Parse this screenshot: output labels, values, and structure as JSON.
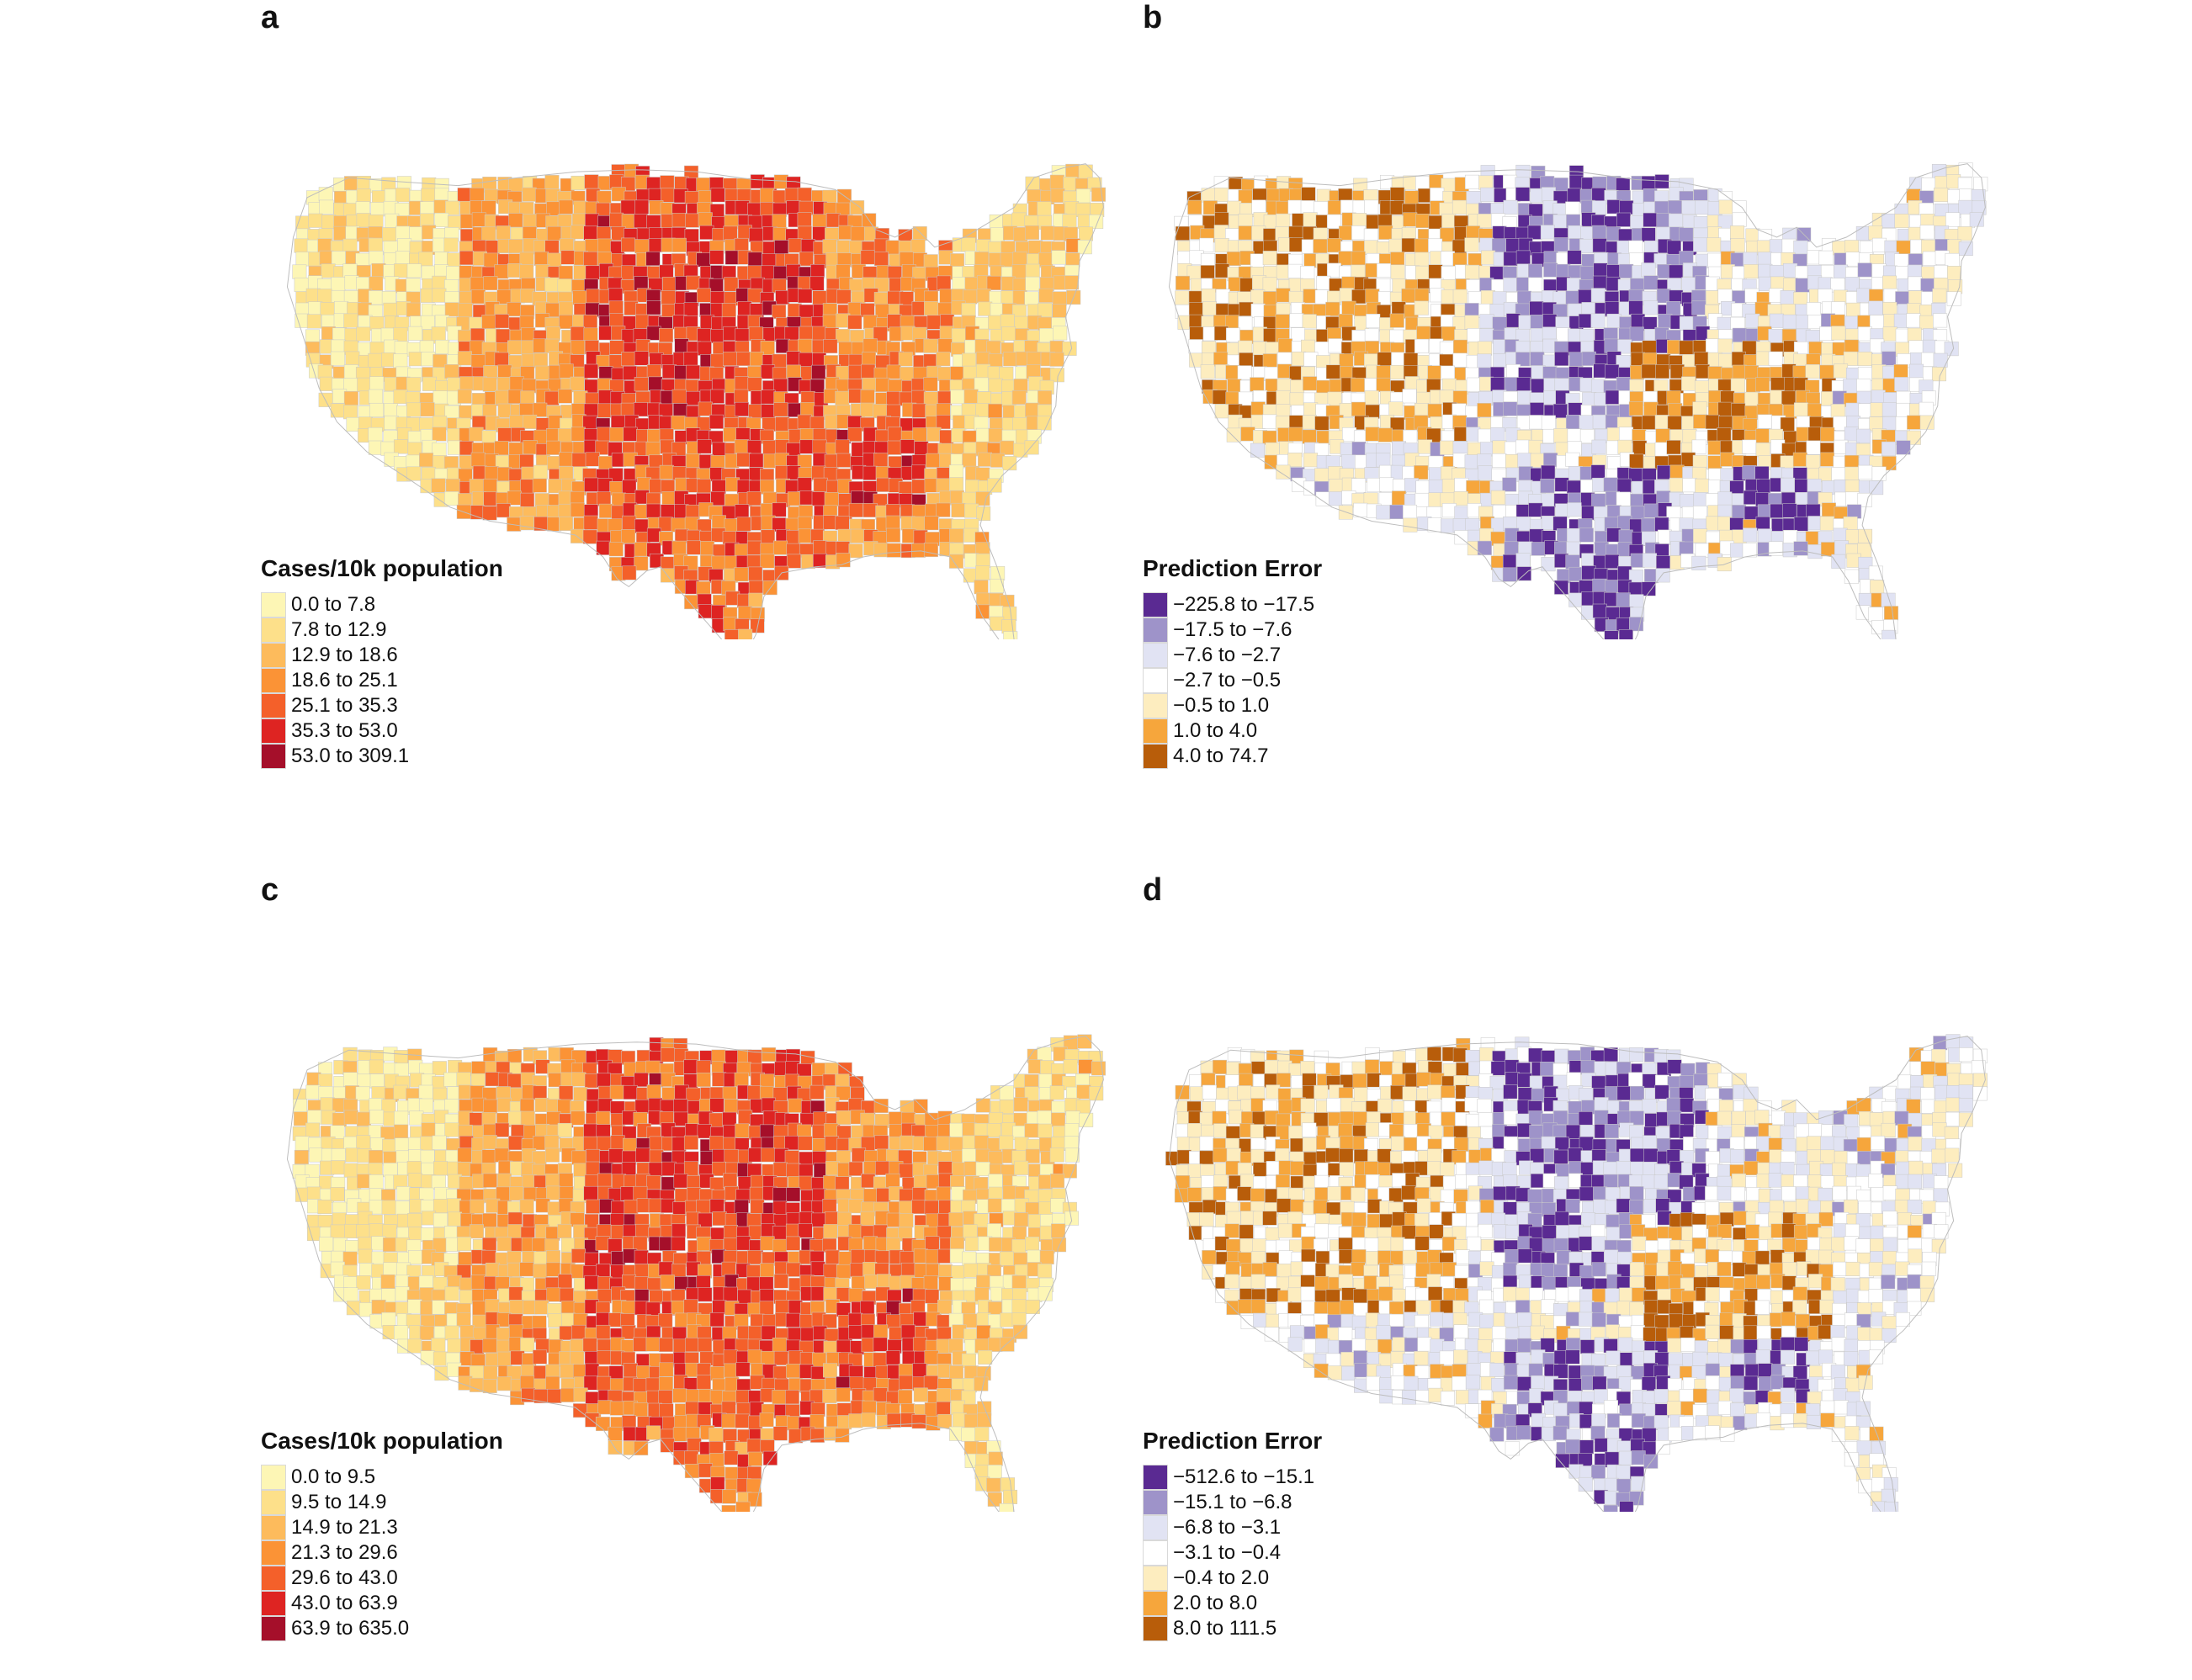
{
  "palettes": {
    "cases": [
      "#fdf6b5",
      "#fde08a",
      "#fdbb5c",
      "#fb9336",
      "#f4602a",
      "#de2422",
      "#a50f2a"
    ],
    "error": [
      "#5a2a92",
      "#9e93c9",
      "#e1e3f3",
      "#ffffff",
      "#fdedbf",
      "#f6a63c",
      "#b85d0a"
    ]
  },
  "panels": [
    {
      "letter": "a",
      "legend_title": "Cases/10k population",
      "palette": "cases",
      "legend": [
        "0.0 to 7.8",
        "7.8 to 12.9",
        "12.9 to 18.6",
        "18.6 to 25.1",
        "25.1 to 35.3",
        "35.3 to 53.0",
        "53.0 to 309.1"
      ]
    },
    {
      "letter": "b",
      "legend_title": "Prediction Error",
      "palette": "error",
      "legend": [
        "−225.8 to −17.5",
        "−17.5 to −7.6",
        "−7.6 to −2.7",
        "−2.7 to −0.5",
        "−0.5 to 1.0",
        "1.0 to 4.0",
        "4.0 to 74.7"
      ]
    },
    {
      "letter": "c",
      "legend_title": "Cases/10k population",
      "palette": "cases",
      "legend": [
        "0.0 to 9.5",
        "9.5 to 14.9",
        "14.9 to 21.3",
        "21.3 to 29.6",
        "29.6 to 43.0",
        "43.0 to 63.9",
        "63.9 to 635.0"
      ]
    },
    {
      "letter": "d",
      "legend_title": "Prediction Error",
      "palette": "error",
      "legend": [
        "−512.6 to −15.1",
        "−15.1 to −6.8",
        "−6.8 to −3.1",
        "−3.1 to −0.4",
        "−0.4 to 2.0",
        "2.0 to 8.0",
        "8.0 to 111.5"
      ]
    }
  ]
}
